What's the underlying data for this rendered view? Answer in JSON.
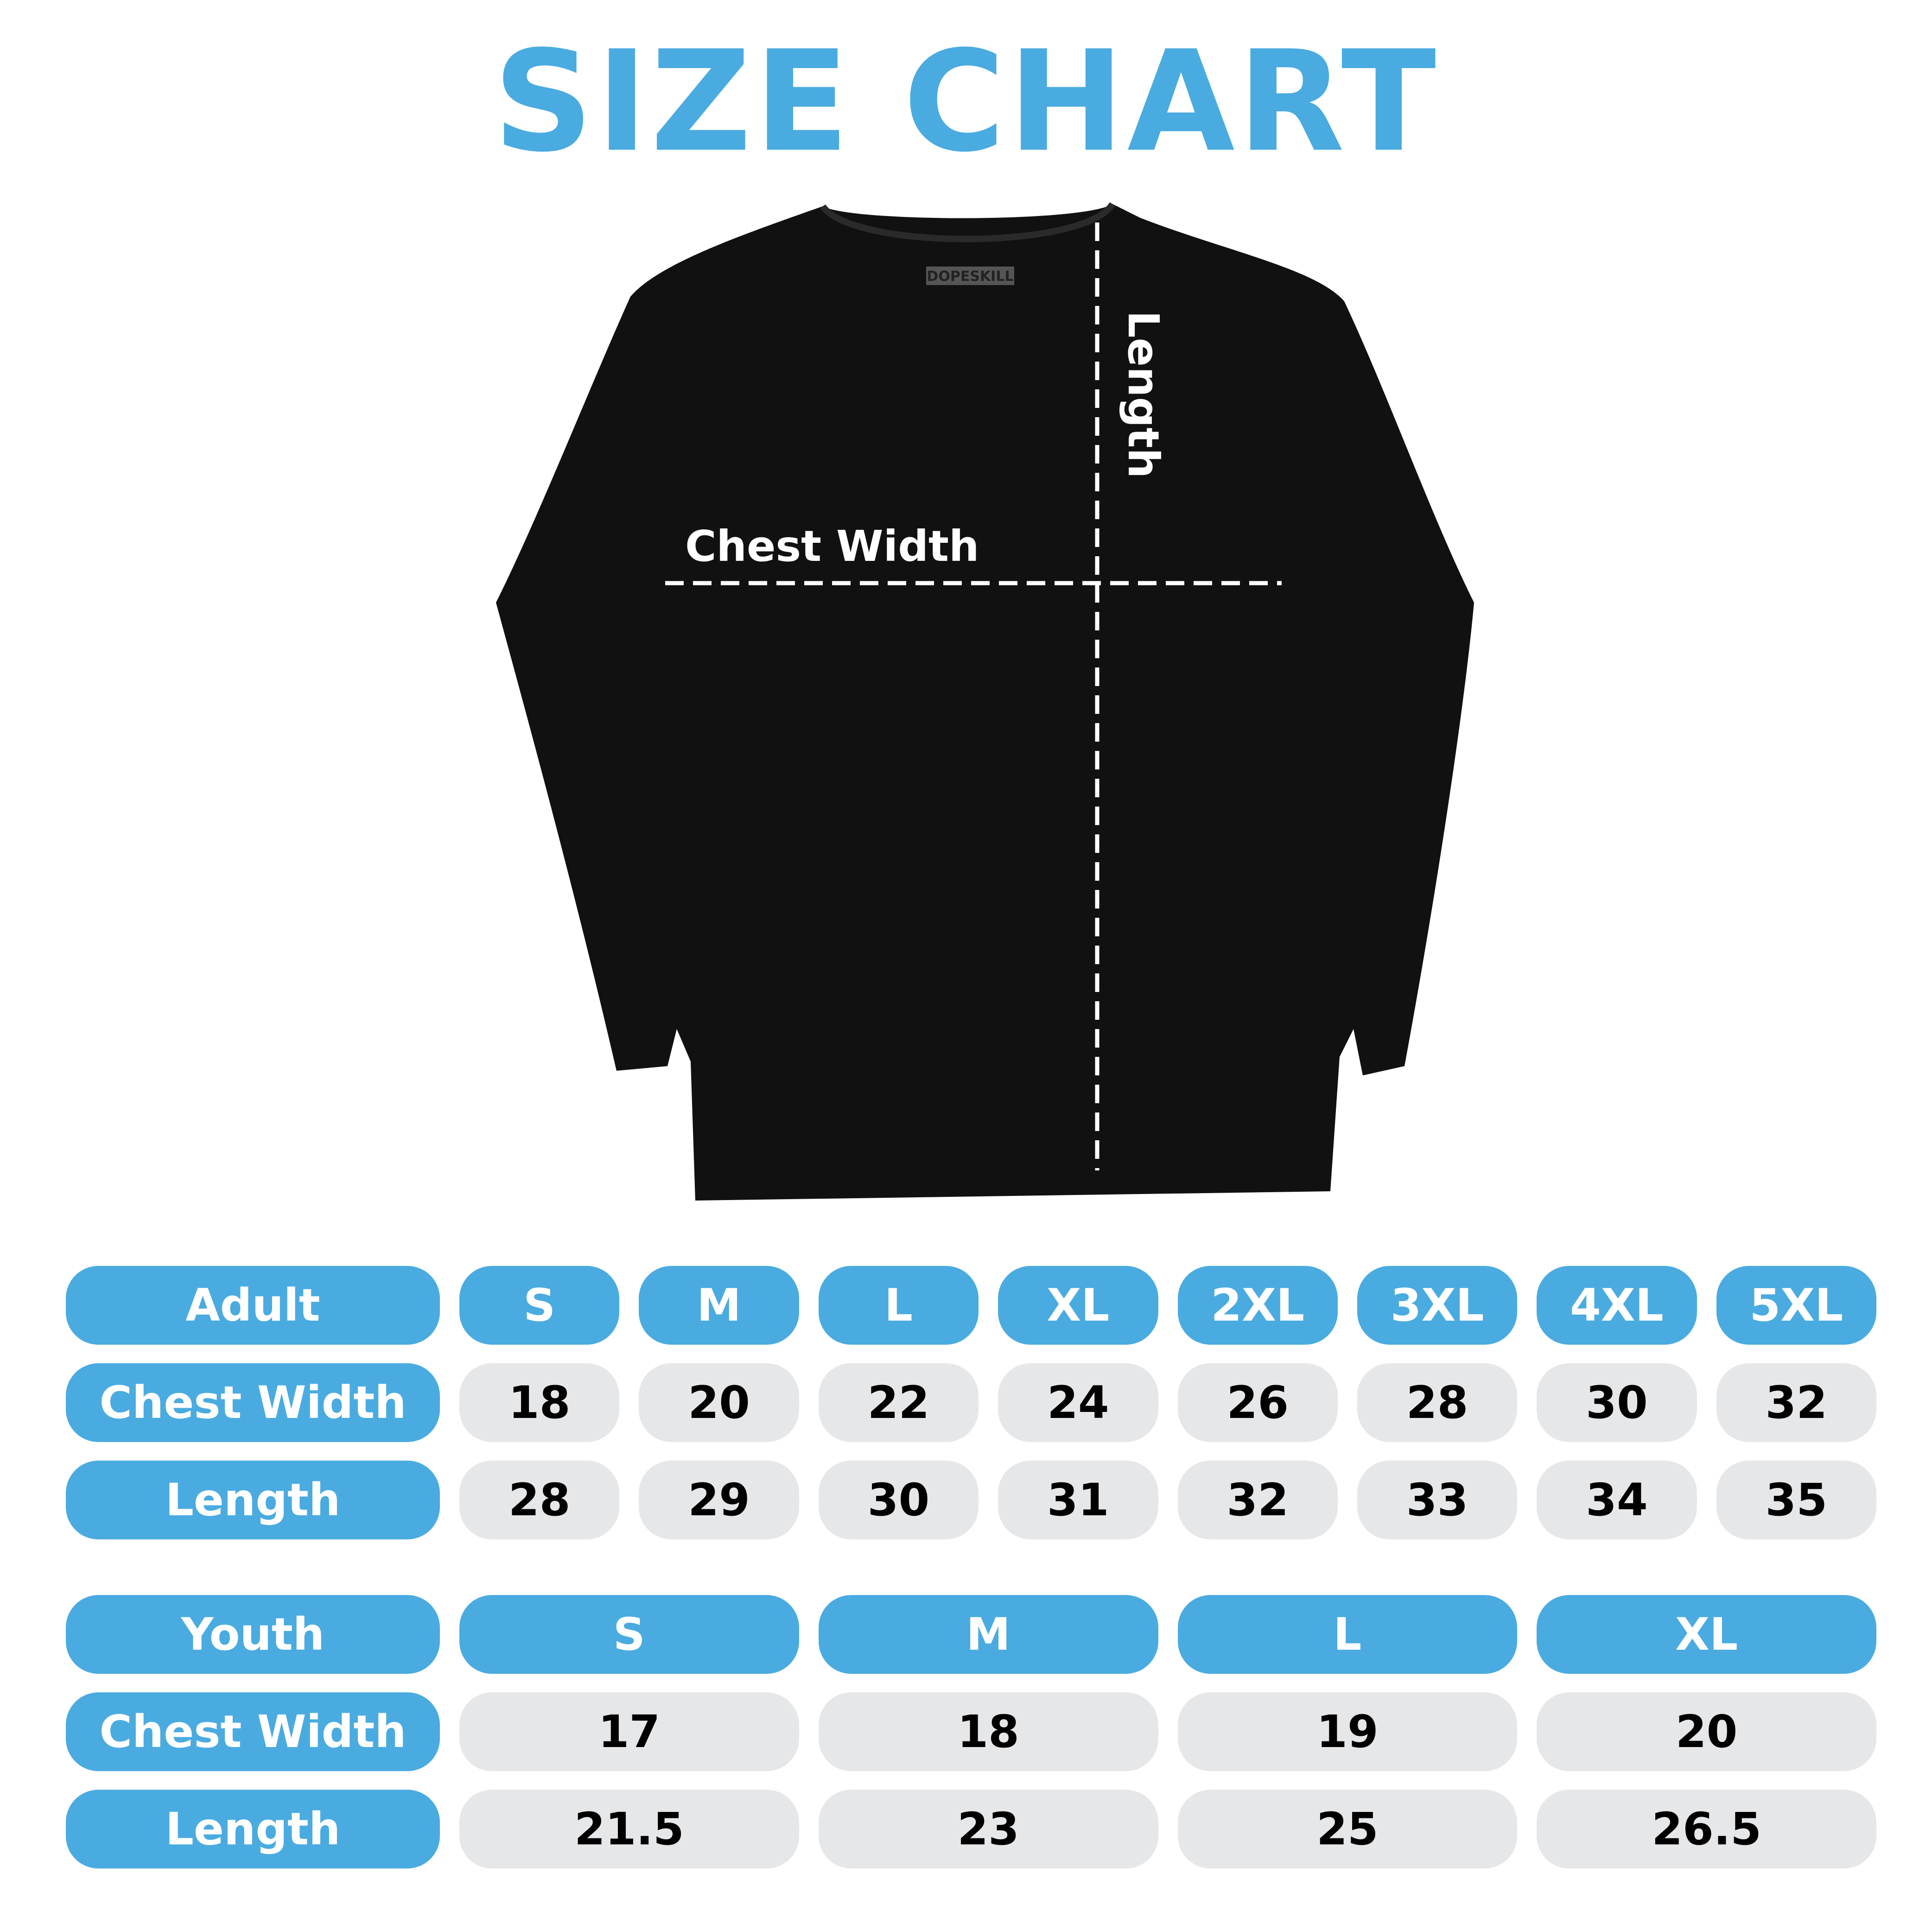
{
  "title": "SIZE CHART",
  "colors": {
    "accent": "#4aabe0",
    "cell_bg": "#e6e7e9",
    "shirt": "#111111"
  },
  "shirt": {
    "brand_tag": "DOPESKILL",
    "chest_label": "Chest Width",
    "length_label": "Length"
  },
  "adult": {
    "header": [
      "Adult",
      "S",
      "M",
      "L",
      "XL",
      "2XL",
      "3XL",
      "4XL",
      "5XL"
    ],
    "rows": [
      {
        "label": "Chest Width",
        "values": [
          "18",
          "20",
          "22",
          "24",
          "26",
          "28",
          "30",
          "32"
        ]
      },
      {
        "label": "Length",
        "values": [
          "28",
          "29",
          "30",
          "31",
          "32",
          "33",
          "34",
          "35"
        ]
      }
    ]
  },
  "youth": {
    "header": [
      "Youth",
      "S",
      "M",
      "L",
      "XL"
    ],
    "rows": [
      {
        "label": "Chest Width",
        "values": [
          "17",
          "18",
          "19",
          "20"
        ]
      },
      {
        "label": "Length",
        "values": [
          "21.5",
          "23",
          "25",
          "26.5"
        ]
      }
    ]
  }
}
